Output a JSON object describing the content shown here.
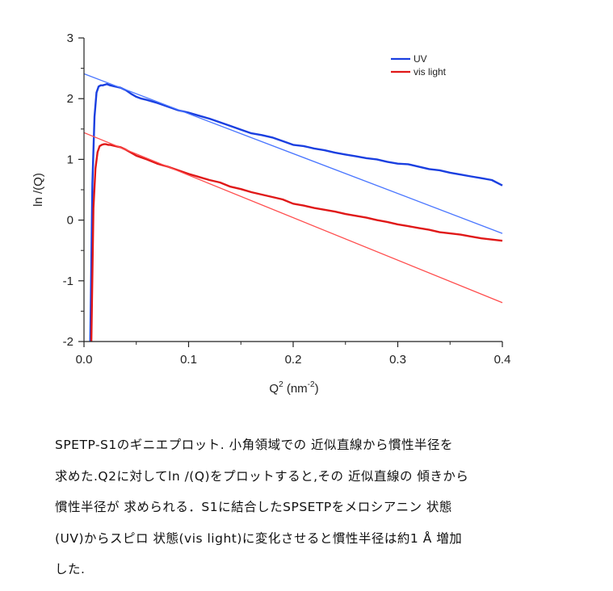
{
  "chart_data": {
    "type": "line",
    "xlabel": "Q",
    "xlabel_sup": "2",
    "xlabel_units_pre": "(nm",
    "xlabel_units_sup": "-2",
    "xlabel_units_post": ")",
    "ylabel": "ln /(Q)",
    "xlim": [
      0.0,
      0.4
    ],
    "ylim": [
      -2,
      3
    ],
    "xticks": [
      "0.0",
      "0.1",
      "0.2",
      "0.3",
      "0.4"
    ],
    "yticks": [
      "-2",
      "-1",
      "0",
      "1",
      "2",
      "3"
    ],
    "legend_position": "top-right",
    "series": [
      {
        "name": "UV",
        "color": "#1a3fe0",
        "x": [
          0.006,
          0.008,
          0.01,
          0.012,
          0.014,
          0.016,
          0.018,
          0.02,
          0.022,
          0.025,
          0.03,
          0.035,
          0.04,
          0.045,
          0.05,
          0.055,
          0.06,
          0.07,
          0.08,
          0.09,
          0.1,
          0.11,
          0.12,
          0.13,
          0.14,
          0.15,
          0.16,
          0.17,
          0.18,
          0.19,
          0.2,
          0.21,
          0.22,
          0.23,
          0.24,
          0.25,
          0.26,
          0.27,
          0.28,
          0.29,
          0.3,
          0.31,
          0.32,
          0.33,
          0.34,
          0.35,
          0.36,
          0.37,
          0.38,
          0.39,
          0.4
        ],
        "y": [
          -2.0,
          0.6,
          1.7,
          2.1,
          2.2,
          2.22,
          2.22,
          2.23,
          2.24,
          2.22,
          2.2,
          2.18,
          2.14,
          2.08,
          2.03,
          2.0,
          1.98,
          1.93,
          1.87,
          1.81,
          1.77,
          1.72,
          1.67,
          1.61,
          1.55,
          1.49,
          1.43,
          1.4,
          1.36,
          1.3,
          1.24,
          1.22,
          1.18,
          1.15,
          1.11,
          1.08,
          1.05,
          1.02,
          1.0,
          0.96,
          0.93,
          0.92,
          0.88,
          0.84,
          0.82,
          0.78,
          0.75,
          0.72,
          0.69,
          0.66,
          0.57
        ]
      },
      {
        "name": "vis light",
        "color": "#e01818",
        "x": [
          0.007,
          0.009,
          0.011,
          0.013,
          0.015,
          0.017,
          0.019,
          0.021,
          0.023,
          0.025,
          0.03,
          0.035,
          0.04,
          0.045,
          0.05,
          0.055,
          0.06,
          0.07,
          0.08,
          0.09,
          0.1,
          0.11,
          0.12,
          0.13,
          0.14,
          0.15,
          0.16,
          0.17,
          0.18,
          0.19,
          0.2,
          0.21,
          0.22,
          0.23,
          0.24,
          0.25,
          0.26,
          0.27,
          0.28,
          0.29,
          0.3,
          0.31,
          0.32,
          0.33,
          0.34,
          0.35,
          0.36,
          0.37,
          0.38,
          0.39,
          0.4
        ],
        "y": [
          -2.0,
          0.2,
          0.85,
          1.12,
          1.22,
          1.24,
          1.25,
          1.25,
          1.24,
          1.24,
          1.22,
          1.2,
          1.16,
          1.11,
          1.06,
          1.03,
          1.0,
          0.93,
          0.88,
          0.82,
          0.76,
          0.71,
          0.66,
          0.62,
          0.55,
          0.51,
          0.46,
          0.42,
          0.38,
          0.34,
          0.27,
          0.24,
          0.2,
          0.17,
          0.14,
          0.1,
          0.07,
          0.04,
          0.0,
          -0.03,
          -0.07,
          -0.1,
          -0.13,
          -0.16,
          -0.2,
          -0.22,
          -0.24,
          -0.27,
          -0.3,
          -0.32,
          -0.34
        ]
      },
      {
        "name": "UV fit",
        "color": "#4a76ff",
        "x": [
          0.0,
          0.4
        ],
        "y": [
          2.41,
          -0.22
        ]
      },
      {
        "name": "vis light fit",
        "color": "#ff4d4d",
        "x": [
          0.0,
          0.4
        ],
        "y": [
          1.44,
          -1.36
        ]
      }
    ]
  },
  "caption": {
    "line1": "SPETP-S1のギニエプロット. 小角領域での 近似直線から慣性半径を",
    "line2": "求めた.Q2に対してln  /(Q)をプロットすると,その 近似直線の 傾きから",
    "line3": "慣性半径が 求められる．S1に結合したSPSETPをメロシアニン 状態",
    "line4": "(UV)からスピロ 状態(vis  light)に変化させると慣性半径は約1 Å  増加",
    "line5": "した."
  }
}
